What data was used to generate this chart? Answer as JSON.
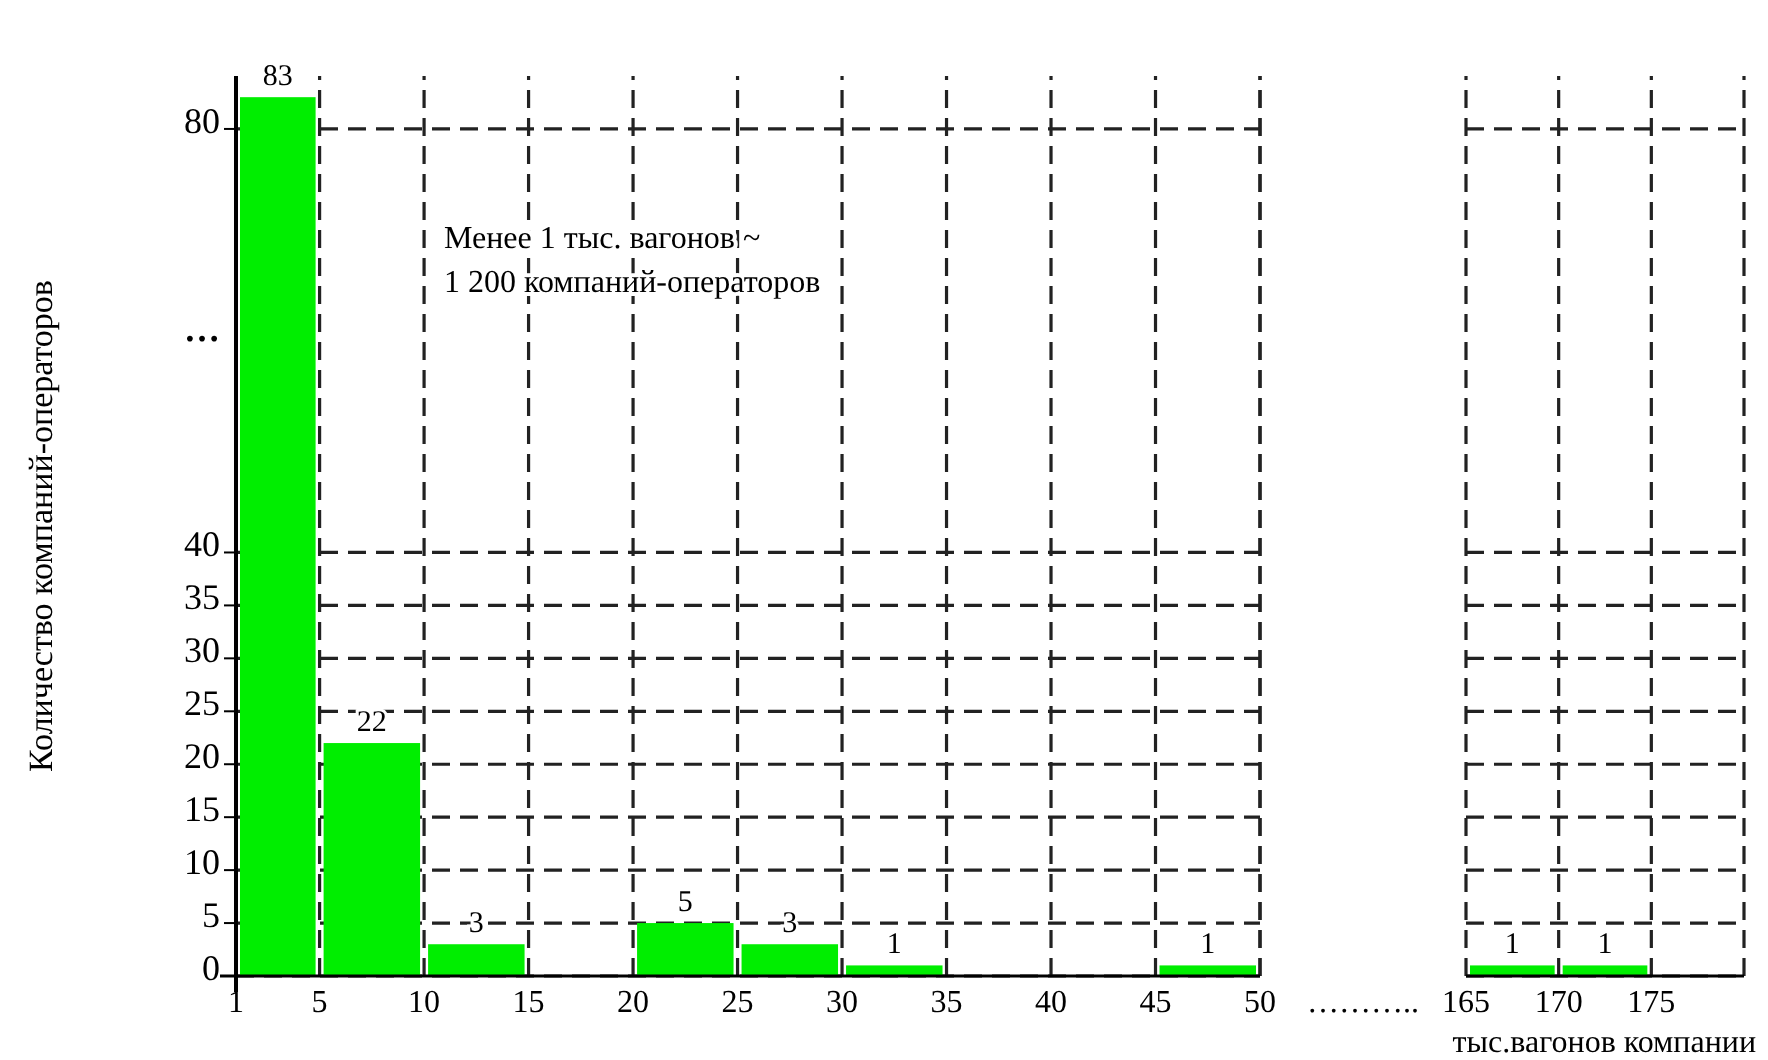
{
  "chart_data": [
    {
      "type": "histogram",
      "ylabel": "Количество компаний-операторов",
      "bins": [
        1,
        5,
        10,
        15,
        20,
        25,
        30,
        35,
        45,
        50
      ],
      "values": [
        83,
        22,
        3,
        0,
        5,
        3,
        1,
        0,
        1
      ],
      "value_labels": [
        "83",
        "22",
        "3",
        null,
        "5",
        "3",
        "1",
        null,
        "1"
      ],
      "color": "#00ee00",
      "xlim": [
        1,
        50
      ],
      "xticks": [
        1,
        5,
        10,
        15,
        20,
        25,
        30,
        35,
        40,
        45,
        50
      ],
      "ylim": [
        0,
        85
      ],
      "yticks": [
        0,
        5,
        10,
        15,
        20,
        25,
        30,
        35,
        40,
        80
      ],
      "grid": true,
      "annotations": [
        "Менее 1 тыс. вагонов ~\n1 200 компаний-операторов",
        "…",
        "……….."
      ]
    },
    {
      "type": "histogram",
      "xlabel": "тыс.вагонов компании",
      "bins": [
        165,
        170,
        175
      ],
      "values": [
        1,
        1
      ],
      "value_labels": [
        "1",
        "1"
      ],
      "color": "#00ee00",
      "xlim": [
        165,
        180
      ],
      "xticks": [
        165,
        170,
        175
      ],
      "ylim": [
        0,
        85
      ],
      "yticks": [
        0,
        5,
        10,
        15,
        20,
        25,
        30,
        35,
        40,
        80
      ],
      "grid": true,
      "tick_labels": "x"
    }
  ]
}
